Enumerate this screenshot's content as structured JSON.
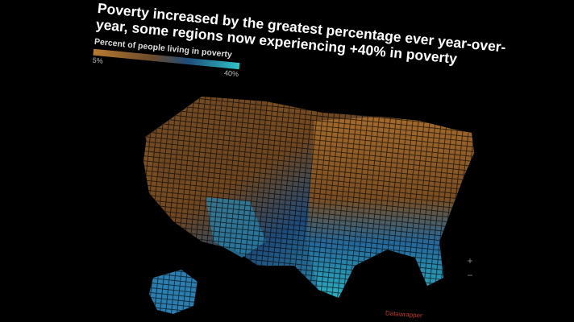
{
  "header": {
    "title_lines": [
      "Poverty increased by the greatest percentage ever year-over-",
      "year, some regions now experiencing +40% in poverty"
    ]
  },
  "legend": {
    "title": "Percent of people living in poverty",
    "min_label": "5%",
    "max_label": "40%"
  },
  "controls": {
    "zoom_in": "+",
    "zoom_out": "−"
  },
  "footer": {
    "credit": "Datawrapper"
  }
}
